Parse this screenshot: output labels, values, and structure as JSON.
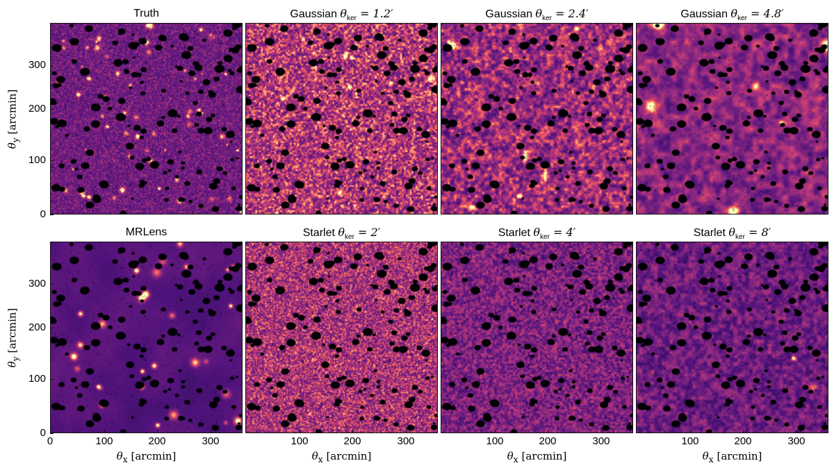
{
  "figure": {
    "panels": [
      {
        "id": "truth",
        "title_text": "Truth",
        "math": "",
        "sub": "",
        "value": "",
        "style": "truth"
      },
      {
        "id": "gauss12",
        "title_text": "Gaussian ",
        "math": "θ",
        "sub": "ker",
        "value": " = 1.2′",
        "style": "gauss1"
      },
      {
        "id": "gauss24",
        "title_text": "Gaussian ",
        "math": "θ",
        "sub": "ker",
        "value": " = 2.4′",
        "style": "gauss2"
      },
      {
        "id": "gauss48",
        "title_text": "Gaussian ",
        "math": "θ",
        "sub": "ker",
        "value": " = 4.8′",
        "style": "gauss3"
      },
      {
        "id": "mrlens",
        "title_text": "MRLens",
        "math": "",
        "sub": "",
        "value": "",
        "style": "mrlens"
      },
      {
        "id": "starlet2",
        "title_text": "Starlet ",
        "math": "θ",
        "sub": "ker",
        "value": " = 2′",
        "style": "star1"
      },
      {
        "id": "starlet4",
        "title_text": "Starlet ",
        "math": "θ",
        "sub": "ker",
        "value": " = 4′",
        "style": "star2"
      },
      {
        "id": "starlet8",
        "title_text": "Starlet ",
        "math": "θ",
        "sub": "ker",
        "value": " = 8′",
        "style": "star3"
      }
    ],
    "y_axis": {
      "label_math": "θ",
      "label_sub": "y",
      "label_unit": "[arcmin]",
      "ticks": [
        "300",
        "200",
        "100",
        "0"
      ]
    },
    "x_axis": {
      "label_math": "θ",
      "label_sub": "x",
      "label_unit": "[arcmin]",
      "ticks": [
        "0",
        "100",
        "200",
        "300"
      ]
    },
    "range_arcmin": [
      0,
      360
    ],
    "colormap": "magma"
  }
}
